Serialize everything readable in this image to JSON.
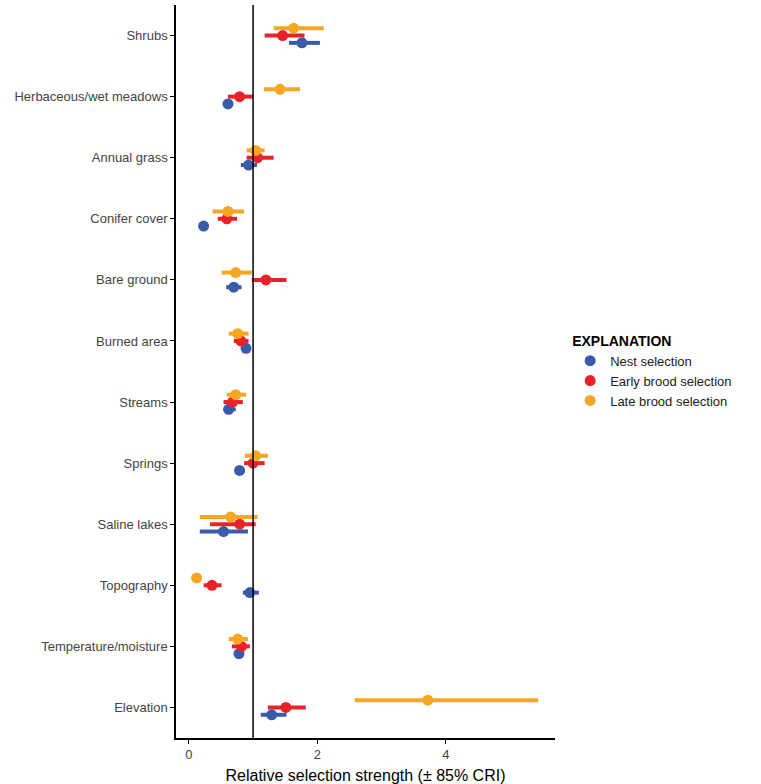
{
  "chart_data": {
    "type": "dot_interval",
    "orientation": "horizontal",
    "x_label": "Relative selection strength (± 85% CRI)",
    "legend_title": "EXPLANATION",
    "legend": "right",
    "categories": [
      "Shrubs",
      "Herbaceous/wet meadows",
      "Annual grass",
      "Conifer cover",
      "Bare ground",
      "Burned area",
      "Streams",
      "Springs",
      "Saline lakes",
      "Topography",
      "Temperature/moisture",
      "Elevation"
    ],
    "xlim": [
      -0.2,
      5.7
    ],
    "xticks": [
      0,
      2,
      4
    ],
    "reference_line": 1,
    "grid": false,
    "series": [
      {
        "name": "Nest selection",
        "color": "#3a5ba9",
        "values": [
          1.76,
          0.61,
          0.93,
          0.23,
          0.7,
          0.89,
          0.62,
          0.79,
          0.54,
          0.95,
          0.78,
          1.29
        ],
        "ci_low": [
          1.56,
          0.58,
          0.81,
          0.2,
          0.58,
          0.83,
          0.54,
          0.76,
          0.17,
          0.84,
          0.75,
          1.12
        ],
        "ci_high": [
          2.04,
          0.64,
          1.06,
          0.27,
          0.82,
          0.94,
          0.73,
          0.82,
          0.92,
          1.09,
          0.81,
          1.52
        ]
      },
      {
        "name": "Early brood selection",
        "color": "#e8222a",
        "values": [
          1.46,
          0.79,
          1.07,
          0.59,
          1.2,
          0.81,
          0.68,
          1.0,
          0.79,
          0.36,
          0.82,
          1.51
        ],
        "ci_low": [
          1.18,
          0.61,
          0.9,
          0.45,
          0.98,
          0.7,
          0.54,
          0.86,
          0.33,
          0.23,
          0.67,
          1.23
        ],
        "ci_high": [
          1.8,
          1.0,
          1.32,
          0.75,
          1.52,
          0.93,
          0.84,
          1.18,
          1.04,
          0.51,
          0.95,
          1.82
        ]
      },
      {
        "name": "Late brood selection",
        "color": "#f5a623",
        "values": [
          1.63,
          1.42,
          1.04,
          0.61,
          0.73,
          0.76,
          0.73,
          1.04,
          0.65,
          0.12,
          0.76,
          3.72
        ],
        "ci_low": [
          1.32,
          1.17,
          0.9,
          0.37,
          0.51,
          0.62,
          0.59,
          0.87,
          0.17,
          0.09,
          0.62,
          2.58
        ],
        "ci_high": [
          2.1,
          1.73,
          1.18,
          0.86,
          0.98,
          0.93,
          0.89,
          1.23,
          1.07,
          0.16,
          0.92,
          5.44
        ]
      }
    ]
  }
}
